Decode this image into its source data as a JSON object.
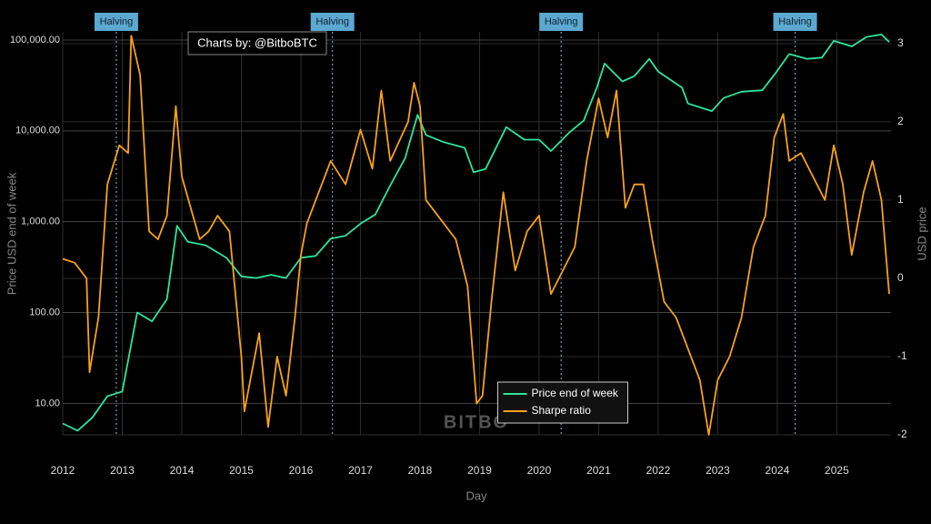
{
  "chart_data": {
    "type": "line",
    "x_label": "Day",
    "y_label": "Price USD end of week",
    "y2_label": "USD price",
    "credit": "Charts by: @BitboBTC",
    "watermark": "BITBO",
    "y_scale": "log",
    "grid": true,
    "legend": "bottom-center",
    "xlim": [
      2012,
      2025.91
    ],
    "xticks": [
      2012,
      2013,
      2014,
      2015,
      2016,
      2017,
      2018,
      2019,
      2020,
      2021,
      2022,
      2023,
      2024,
      2025
    ],
    "ylim": [
      4.5,
      123000
    ],
    "yticks": [
      {
        "value": 10,
        "label": "10.00"
      },
      {
        "value": 100,
        "label": "100.00"
      },
      {
        "value": 1000,
        "label": "1,000.00"
      },
      {
        "value": 10000,
        "label": "10,000.00"
      },
      {
        "value": 100000,
        "label": "100,000.00"
      }
    ],
    "y2lim": [
      -2,
      3.15
    ],
    "y2ticks": [
      -2,
      -1,
      0,
      1,
      2,
      3
    ],
    "annotations": [
      {
        "text": "Halving",
        "x": 2012.9
      },
      {
        "text": "Halving",
        "x": 2016.53
      },
      {
        "text": "Halving",
        "x": 2020.37
      },
      {
        "text": "Halving",
        "x": 2024.3
      }
    ],
    "series": [
      {
        "name": "Price end of week",
        "color": "#2ee59d",
        "x": [
          2012.0,
          2012.25,
          2012.5,
          2012.75,
          2013.0,
          2013.25,
          2013.5,
          2013.75,
          2013.92,
          2014.1,
          2014.4,
          2014.75,
          2015.0,
          2015.25,
          2015.5,
          2015.75,
          2016.0,
          2016.25,
          2016.5,
          2016.75,
          2017.0,
          2017.25,
          2017.5,
          2017.75,
          2017.96,
          2018.1,
          2018.4,
          2018.75,
          2018.9,
          2019.1,
          2019.45,
          2019.75,
          2020.0,
          2020.2,
          2020.5,
          2020.75,
          2020.97,
          2021.1,
          2021.4,
          2021.6,
          2021.85,
          2022.0,
          2022.4,
          2022.5,
          2022.9,
          2023.1,
          2023.4,
          2023.75,
          2023.97,
          2024.2,
          2024.5,
          2024.75,
          2024.95,
          2025.25,
          2025.5,
          2025.75,
          2025.88
        ],
        "values": [
          6,
          5,
          7,
          12,
          13.5,
          100,
          80,
          140,
          900,
          600,
          550,
          400,
          250,
          240,
          260,
          240,
          400,
          420,
          650,
          700,
          950,
          1200,
          2500,
          5000,
          15000,
          9000,
          7500,
          6500,
          3500,
          3800,
          11000,
          8000,
          8000,
          6000,
          9500,
          13000,
          30000,
          55000,
          35000,
          40000,
          62000,
          45000,
          30000,
          20000,
          16500,
          23000,
          27000,
          28000,
          43000,
          70000,
          62000,
          64000,
          98000,
          85000,
          108000,
          115000,
          95000
        ]
      },
      {
        "name": "Sharpe ratio",
        "color": "#f7a21b",
        "axis": "y2",
        "x": [
          2012.0,
          2012.2,
          2012.4,
          2012.45,
          2012.6,
          2012.75,
          2012.95,
          2013.1,
          2013.15,
          2013.3,
          2013.45,
          2013.6,
          2013.75,
          2013.9,
          2014.0,
          2014.3,
          2014.45,
          2014.6,
          2014.8,
          2015.0,
          2015.05,
          2015.3,
          2015.45,
          2015.6,
          2015.75,
          2015.9,
          2016.0,
          2016.1,
          2016.4,
          2016.5,
          2016.75,
          2017.0,
          2017.2,
          2017.35,
          2017.5,
          2017.8,
          2017.9,
          2018.0,
          2018.1,
          2018.3,
          2018.6,
          2018.8,
          2018.95,
          2019.05,
          2019.2,
          2019.4,
          2019.6,
          2019.8,
          2020.0,
          2020.2,
          2020.4,
          2020.6,
          2020.8,
          2021.0,
          2021.15,
          2021.3,
          2021.45,
          2021.6,
          2021.75,
          2021.9,
          2022.1,
          2022.3,
          2022.5,
          2022.7,
          2022.85,
          2023.0,
          2023.2,
          2023.4,
          2023.6,
          2023.8,
          2023.95,
          2024.1,
          2024.2,
          2024.4,
          2024.6,
          2024.8,
          2024.95,
          2025.1,
          2025.25,
          2025.45,
          2025.6,
          2025.75,
          2025.88
        ],
        "values": [
          0.25,
          0.2,
          0,
          -1.2,
          -0.5,
          1.2,
          1.7,
          1.6,
          3.1,
          2.6,
          0.6,
          0.5,
          0.8,
          2.2,
          1.3,
          0.5,
          0.6,
          0.8,
          0.6,
          -1.0,
          -1.7,
          -0.7,
          -1.9,
          -1.0,
          -1.5,
          -0.5,
          0.3,
          0.7,
          1.3,
          1.5,
          1.2,
          1.9,
          1.4,
          2.4,
          1.5,
          2.0,
          2.5,
          2.2,
          1.0,
          0.8,
          0.5,
          -0.1,
          -1.6,
          -1.5,
          -0.3,
          1.1,
          0.1,
          0.6,
          0.8,
          -0.2,
          0.1,
          0.4,
          1.5,
          2.3,
          1.8,
          2.4,
          0.9,
          1.2,
          1.2,
          0.5,
          -0.3,
          -0.5,
          -0.9,
          -1.3,
          -2.0,
          -1.3,
          -1.0,
          -0.5,
          0.4,
          0.8,
          1.8,
          2.1,
          1.5,
          1.6,
          1.3,
          1.0,
          1.7,
          1.2,
          0.3,
          1.1,
          1.5,
          1.0,
          -0.2
        ]
      }
    ]
  }
}
